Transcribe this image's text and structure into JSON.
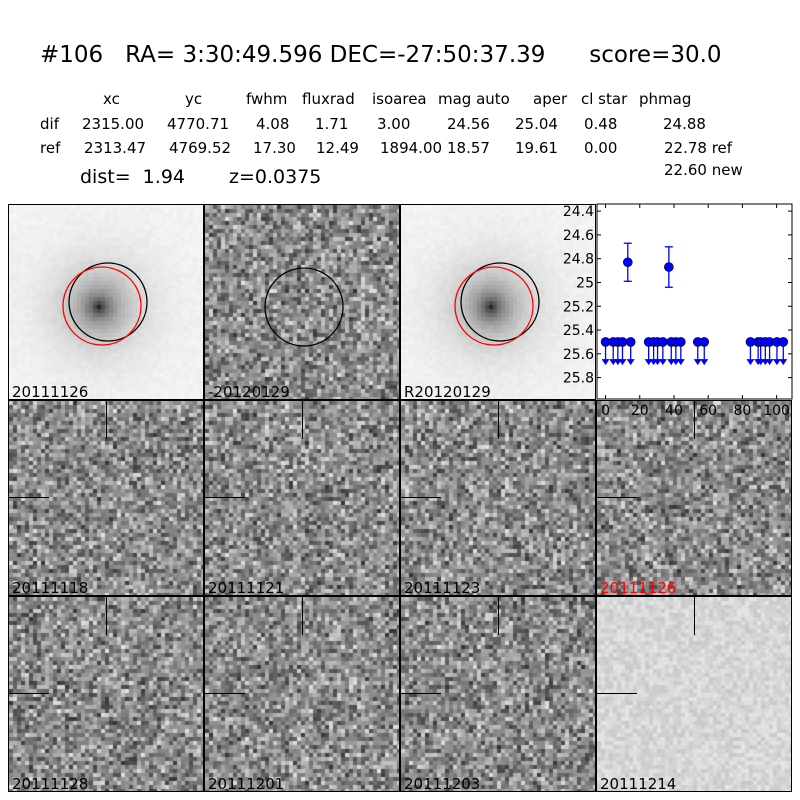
{
  "title": "#106   RA= 3:30:49.596 DEC=-27:50:37.39      score=30.0",
  "table": {
    "headers": [
      "xc",
      "yc",
      "fwhm",
      "fluxrad",
      "isoarea",
      "mag auto",
      "aper",
      "cl star",
      "phmag"
    ],
    "rows": [
      {
        "label": "dif",
        "values": [
          "2315.00",
          "4770.71",
          "4.08",
          "1.71",
          "3.00",
          "24.56",
          "25.04",
          "0.48",
          "24.88"
        ]
      },
      {
        "label": "ref",
        "values": [
          "2313.47",
          "4769.52",
          "17.30",
          "12.49",
          "1894.00",
          "18.57",
          "19.61",
          "0.00",
          "22.78 ref"
        ]
      }
    ],
    "extra": "22.60 new"
  },
  "dist": "dist=  1.94",
  "z": "z=0.0375",
  "panels": [
    {
      "label": "20111126",
      "kind": "galaxy"
    },
    {
      "label": "-20120129",
      "kind": "diff"
    },
    {
      "label": "R20120129",
      "kind": "galaxy"
    },
    {
      "label": "20111118",
      "kind": "noise"
    },
    {
      "label": "20111121",
      "kind": "noise"
    },
    {
      "label": "20111123",
      "kind": "noise"
    },
    {
      "label": "20111126",
      "kind": "noise",
      "label_color": "#ff0000"
    },
    {
      "label": "20111128",
      "kind": "noise"
    },
    {
      "label": "20111201",
      "kind": "noise"
    },
    {
      "label": "20111203",
      "kind": "noise"
    },
    {
      "label": "20111214",
      "kind": "faint"
    }
  ],
  "chart_data": {
    "type": "scatter",
    "xlim": [
      -5,
      109
    ],
    "ylim": [
      25.98,
      24.34
    ],
    "y_inverted": true,
    "xticks": [
      0,
      20,
      40,
      60,
      80,
      100
    ],
    "yticks": [
      24.4,
      24.6,
      24.8,
      25.0,
      25.2,
      25.4,
      25.6,
      25.8
    ],
    "color": "#0000ff",
    "detections": [
      {
        "x": 13,
        "y": 24.83,
        "err": 0.16
      },
      {
        "x": 37,
        "y": 24.87,
        "err": 0.17
      }
    ],
    "upper_limits": {
      "y": 25.5,
      "x": [
        0,
        4.5,
        7.2,
        9.9,
        14.7,
        25.2,
        28.1,
        30.4,
        33.5,
        38.4,
        41.1,
        44,
        53.9,
        57.7,
        84.7,
        89.2,
        90.7,
        93.4,
        95.9,
        100.2,
        103.9
      ]
    }
  }
}
